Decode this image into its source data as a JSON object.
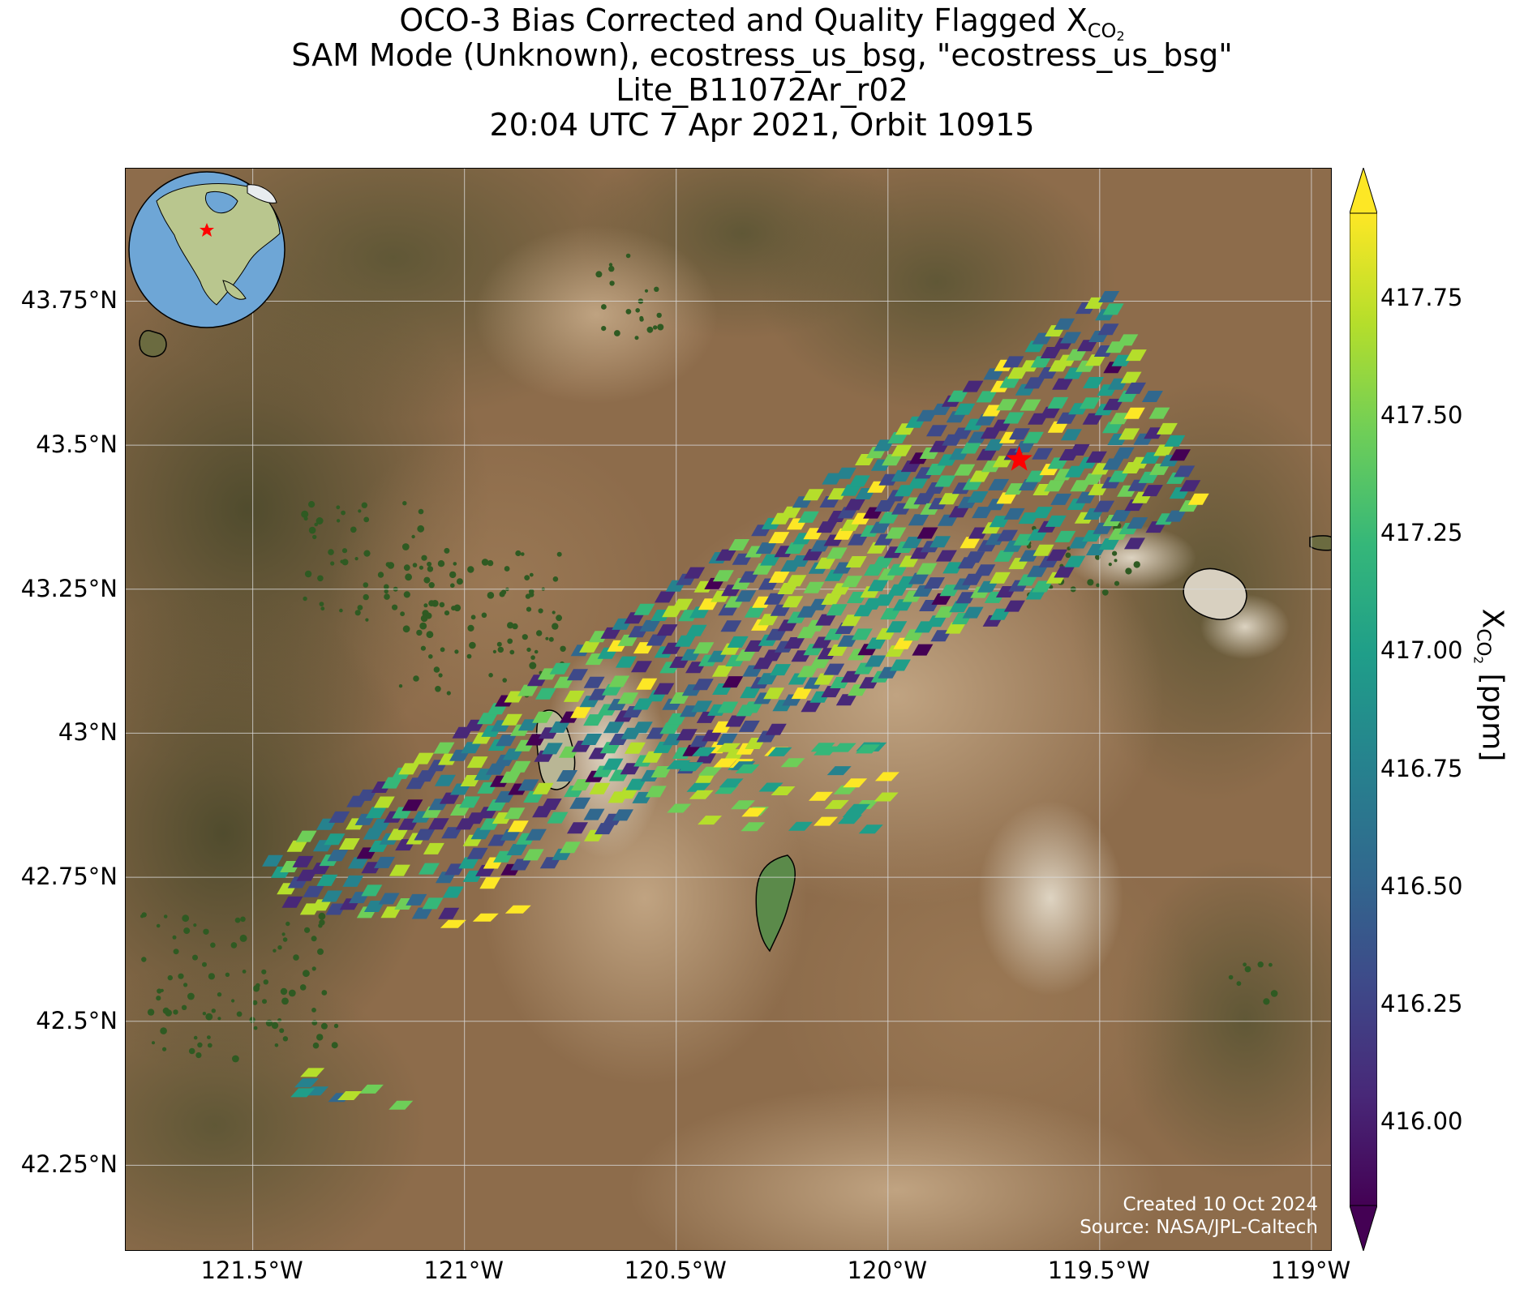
{
  "title": {
    "line1_prefix": "OCO-3 Bias Corrected and Quality Flagged X",
    "line1_sub": "CO",
    "line1_subsub": "2",
    "line2": "SAM Mode (Unknown), ecostress_us_bsg, \"ecostress_us_bsg\"",
    "line3": "Lite_B11072Ar_r02",
    "line4": "20:04 UTC 7 Apr 2021, Orbit 10915"
  },
  "credits": {
    "line1": "Created 10 Oct 2024",
    "line2": "Source: NASA/JPL-Caltech"
  },
  "map": {
    "lon_range": [
      -121.8,
      -118.95
    ],
    "lat_range": [
      42.1,
      43.98
    ],
    "lat_ticks": [
      "43.75°N",
      "43.5°N",
      "43.25°N",
      "43°N",
      "42.75°N",
      "42.5°N",
      "42.25°N"
    ],
    "lat_values": [
      43.75,
      43.5,
      43.25,
      43.0,
      42.75,
      42.5,
      42.25
    ],
    "lon_ticks": [
      "121.5°W",
      "121°W",
      "120.5°W",
      "120°W",
      "119.5°W",
      "119°W"
    ],
    "lon_values": [
      -121.5,
      -121.0,
      -120.5,
      -120.0,
      -119.5,
      -119.0
    ],
    "target_marker": {
      "lon": -119.69,
      "lat": 43.475,
      "color": "#ff0000",
      "shape": "star"
    },
    "colors": {
      "terrain": "#8a6a4a",
      "grid": "#d9d9d9",
      "lake_outline": "#000000",
      "lake_water": "#4f8f4a"
    }
  },
  "colorbar": {
    "label_prefix": "X",
    "label_sub": "CO",
    "label_subsub": "2",
    "label_suffix": " [ppm]",
    "ticks": [
      "417.75",
      "417.50",
      "417.25",
      "417.00",
      "416.75",
      "416.50",
      "416.25",
      "416.00"
    ],
    "tick_values": [
      417.75,
      417.5,
      417.25,
      417.0,
      416.75,
      416.5,
      416.25,
      416.0
    ],
    "vmin": 415.82,
    "vmax": 417.93,
    "extend": "both",
    "colormap": "viridis",
    "colors": [
      "#440154",
      "#482878",
      "#3e4989",
      "#31688e",
      "#26828e",
      "#1f9e89",
      "#35b779",
      "#6ece58",
      "#b5de2b",
      "#fde725"
    ]
  },
  "chart_data": {
    "type": "map",
    "variable": "XCO2",
    "units": "ppm",
    "footprint_clusters": [
      {
        "region": "main_swath",
        "lon_range": [
          -121.45,
          -119.4
        ],
        "lat_range": [
          42.68,
          43.76
        ],
        "value_range": [
          415.9,
          417.9
        ]
      },
      {
        "region": "southeast_patch",
        "lon_range": [
          -120.95,
          -120.95
        ],
        "lat_range": [
          42.63,
          42.73
        ],
        "value_range": [
          417.8,
          417.9
        ]
      },
      {
        "region": "central_patch",
        "lon_range": [
          -120.5,
          -120.0
        ],
        "lat_range": [
          42.82,
          42.98
        ],
        "value_range": [
          416.8,
          417.9
        ]
      },
      {
        "region": "southwest_patch",
        "lon_range": [
          -121.42,
          -121.15
        ],
        "lat_range": [
          42.35,
          42.42
        ],
        "value_range": [
          416.2,
          417.9
        ]
      }
    ]
  }
}
